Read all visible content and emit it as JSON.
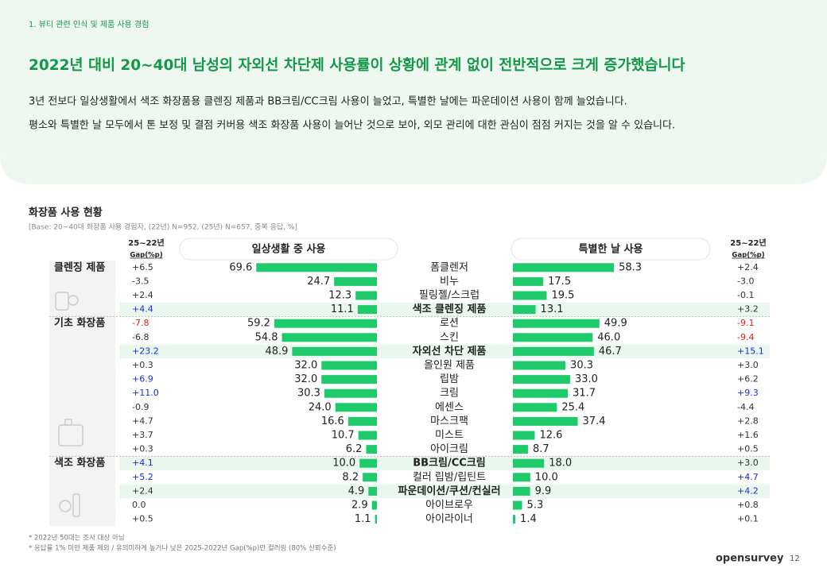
{
  "header": {
    "breadcrumb": "1. 뷰티 관련 인식 및 제품 사용 경험",
    "title": "2022년 대비 20~40대 남성의 자외선 차단제 사용률이 상황에 관계 없이 전반적으로 크게 증가했습니다",
    "lines": [
      "3년 전보다 일상생활에서 색조 화장품용 클렌징 제품과 BB크림/CC크림 사용이 늘었고, 특별한 날에는 파운데이션 사용이 함께 늘었습니다.",
      "평소와 특별한 날 모두에서 톤 보정 및 결점 커버용 색조 화장품 사용이 늘어난 것으로 보아, 외모 관리에 대한 관심이 점점 커지는 것을 알 수 있습니다."
    ]
  },
  "chart_data": {
    "type": "butterfly-bar",
    "title": "화장품 사용 현황",
    "subtitle": "[Base: 20~40대 화장품 사용 경험자, (22년) N=952, (25년) N=657, 중복 응답, %]",
    "gap_header": "25~22년",
    "gap_unit": "Gap(%p)",
    "groups": [
      "클렌징 제품",
      null,
      null,
      null,
      "기초 화장품",
      null,
      null,
      null,
      null,
      null,
      null,
      null,
      null,
      null,
      "색조 화장품",
      null,
      null,
      null,
      null
    ],
    "categories": [
      "폼클렌저",
      "비누",
      "필링젤/스크럽",
      "색조 클렌징 제품",
      "로션",
      "스킨",
      "자외선 차단 제품",
      "올인원 제품",
      "립밤",
      "크림",
      "에센스",
      "마스크팩",
      "미스트",
      "아이크림",
      "BB크림/CC크림",
      "컬러 립밤/립틴트",
      "파운데이션/쿠션/컨실러",
      "아이브로우",
      "아이라이너"
    ],
    "highlight": [
      false,
      false,
      false,
      true,
      false,
      false,
      true,
      false,
      false,
      false,
      false,
      false,
      false,
      false,
      true,
      false,
      true,
      false,
      false
    ],
    "series": [
      {
        "name": "일상생활 중 사용",
        "color": "#1fca6a",
        "values": [
          69.6,
          24.7,
          12.3,
          11.1,
          59.2,
          54.8,
          48.9,
          32.0,
          32.0,
          30.3,
          24.0,
          16.6,
          10.7,
          6.2,
          10.0,
          8.2,
          4.9,
          2.9,
          1.1
        ],
        "value_labels": [
          "69.6",
          "24.7",
          "12.3",
          "11.1",
          "59.2",
          "54.8",
          "48.9",
          "32.0",
          "32.0",
          "30.3",
          "24.0",
          "16.6",
          "10.7",
          "6.2",
          "10.0",
          "8.2",
          "4.9",
          "2.9",
          "1.1"
        ],
        "gaps": [
          "+6.5",
          "-3.5",
          "+2.4",
          "+4.4",
          "-7.8",
          "-6.8",
          "+23.2",
          "+0.3",
          "+6.9",
          "+11.0",
          "-0.9",
          "+4.7",
          "+3.7",
          "+0.3",
          "+4.1",
          "+5.2",
          "+2.4",
          "0.0",
          "+0.5"
        ],
        "gap_colors": [
          "#333",
          "#333",
          "#333",
          "#1a2fd4",
          "#e0231c",
          "#333",
          "#1a2fd4",
          "#333",
          "#1a2fd4",
          "#1a2fd4",
          "#333",
          "#333",
          "#333",
          "#333",
          "#1a2fd4",
          "#1a2fd4",
          "#333",
          "#333",
          "#333"
        ]
      },
      {
        "name": "특별한 날 사용",
        "color": "#1fca6a",
        "values": [
          58.3,
          17.5,
          19.5,
          13.1,
          49.9,
          46.0,
          46.7,
          30.3,
          33.0,
          31.7,
          25.4,
          37.4,
          12.6,
          8.7,
          18.0,
          10.0,
          9.9,
          5.3,
          1.4
        ],
        "value_labels": [
          "58.3",
          "17.5",
          "19.5",
          "13.1",
          "49.9",
          "46.0",
          "46.7",
          "30.3",
          "33.0",
          "31.7",
          "25.4",
          "37.4",
          "12.6",
          "8.7",
          "18.0",
          "10.0",
          "9.9",
          "5.3",
          "1.4"
        ],
        "gaps": [
          "+2.4",
          "-3.0",
          "-0.1",
          "+3.2",
          "-9.1",
          "-9.4",
          "+15.1",
          "+3.0",
          "+6.2",
          "+9.3",
          "-4.4",
          "+2.8",
          "+1.6",
          "+0.5",
          "+3.0",
          "+4.7",
          "+4.2",
          "+0.8",
          "+0.1"
        ],
        "gap_colors": [
          "#333",
          "#333",
          "#333",
          "#333",
          "#e0231c",
          "#e0231c",
          "#1a2fd4",
          "#333",
          "#333",
          "#1a2fd4",
          "#333",
          "#333",
          "#333",
          "#333",
          "#333",
          "#1a2fd4",
          "#1a2fd4",
          "#333",
          "#333"
        ]
      }
    ]
  },
  "footnotes": [
    "* 2022년 50대는 조사 대상 아님",
    "* 응답률 1% 미만 제품 제외 / 유의미하게 높거나 낮은 2025-2022년 Gap(%p)만 컬러링 (80% 신뢰수준)"
  ],
  "brand": "opensurvey",
  "page": "12"
}
